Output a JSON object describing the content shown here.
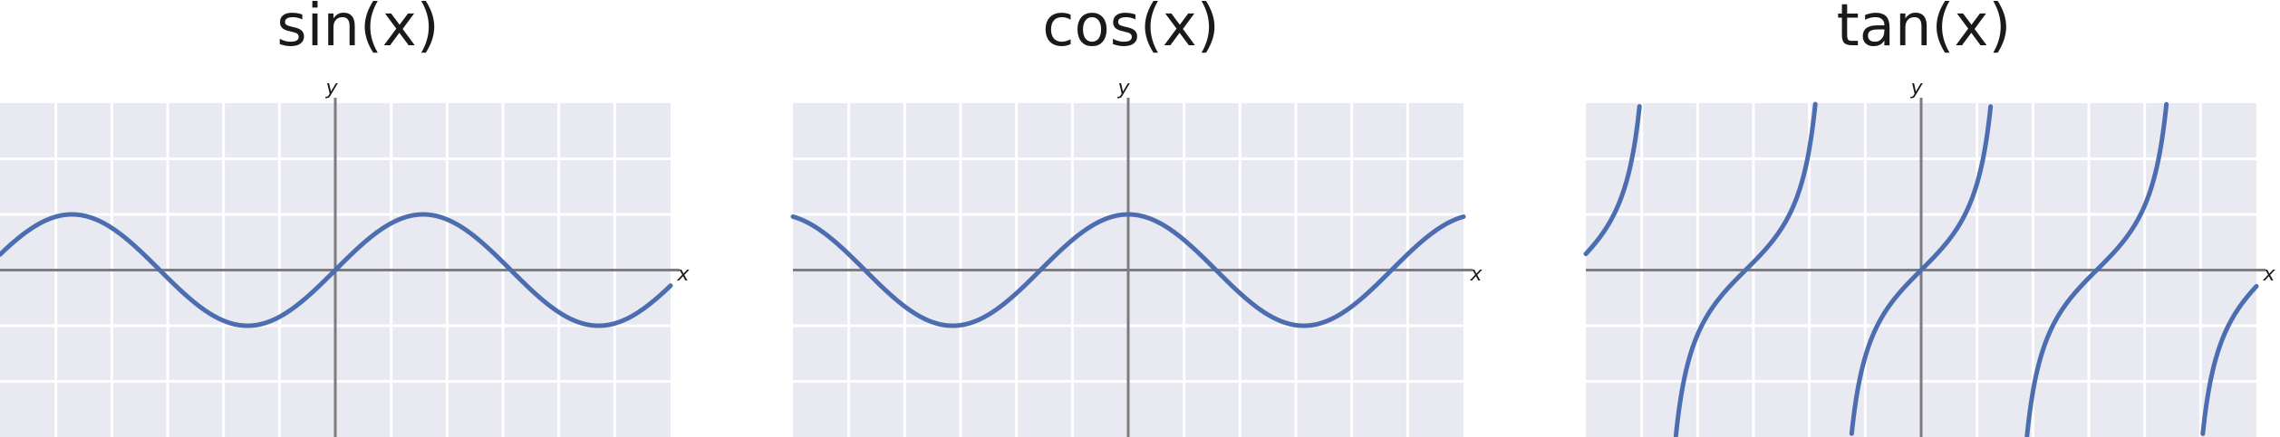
{
  "chart_data": [
    {
      "type": "line",
      "title": "sin(x)",
      "xlabel": "x",
      "ylabel": "y",
      "function": "sin",
      "xlim": [
        -6.0,
        6.0
      ],
      "ylim": [
        -3.0,
        3.0
      ],
      "grid": true,
      "x_gridlines": [
        -5,
        -4,
        -3,
        -2,
        -1,
        0,
        1,
        2,
        3,
        4,
        5
      ],
      "y_gridlines": [
        -2,
        -1,
        0,
        1,
        2
      ],
      "colors": {
        "line": "#4c6eb0",
        "plot_bg": "#e9e9f1",
        "grid": "#ffffff",
        "axis": "#7d7d7d"
      }
    },
    {
      "type": "line",
      "title": "cos(x)",
      "xlabel": "x",
      "ylabel": "y",
      "function": "cos",
      "xlim": [
        -6.0,
        6.0
      ],
      "ylim": [
        -3.0,
        3.0
      ],
      "grid": true,
      "x_gridlines": [
        -5,
        -4,
        -3,
        -2,
        -1,
        0,
        1,
        2,
        3,
        4,
        5
      ],
      "y_gridlines": [
        -2,
        -1,
        0,
        1,
        2
      ],
      "colors": {
        "line": "#4c6eb0",
        "plot_bg": "#e9e9f1",
        "grid": "#ffffff",
        "axis": "#7d7d7d"
      }
    },
    {
      "type": "line",
      "title": "tan(x)",
      "xlabel": "x",
      "ylabel": "y",
      "function": "tan",
      "xlim": [
        -6.0,
        6.0
      ],
      "ylim": [
        -3.0,
        3.0
      ],
      "grid": true,
      "x_gridlines": [
        -5,
        -4,
        -3,
        -2,
        -1,
        0,
        1,
        2,
        3,
        4,
        5
      ],
      "y_gridlines": [
        -2,
        -1,
        0,
        1,
        2
      ],
      "colors": {
        "line": "#4c6eb0",
        "plot_bg": "#e9e9f1",
        "grid": "#ffffff",
        "axis": "#7d7d7d"
      }
    }
  ]
}
